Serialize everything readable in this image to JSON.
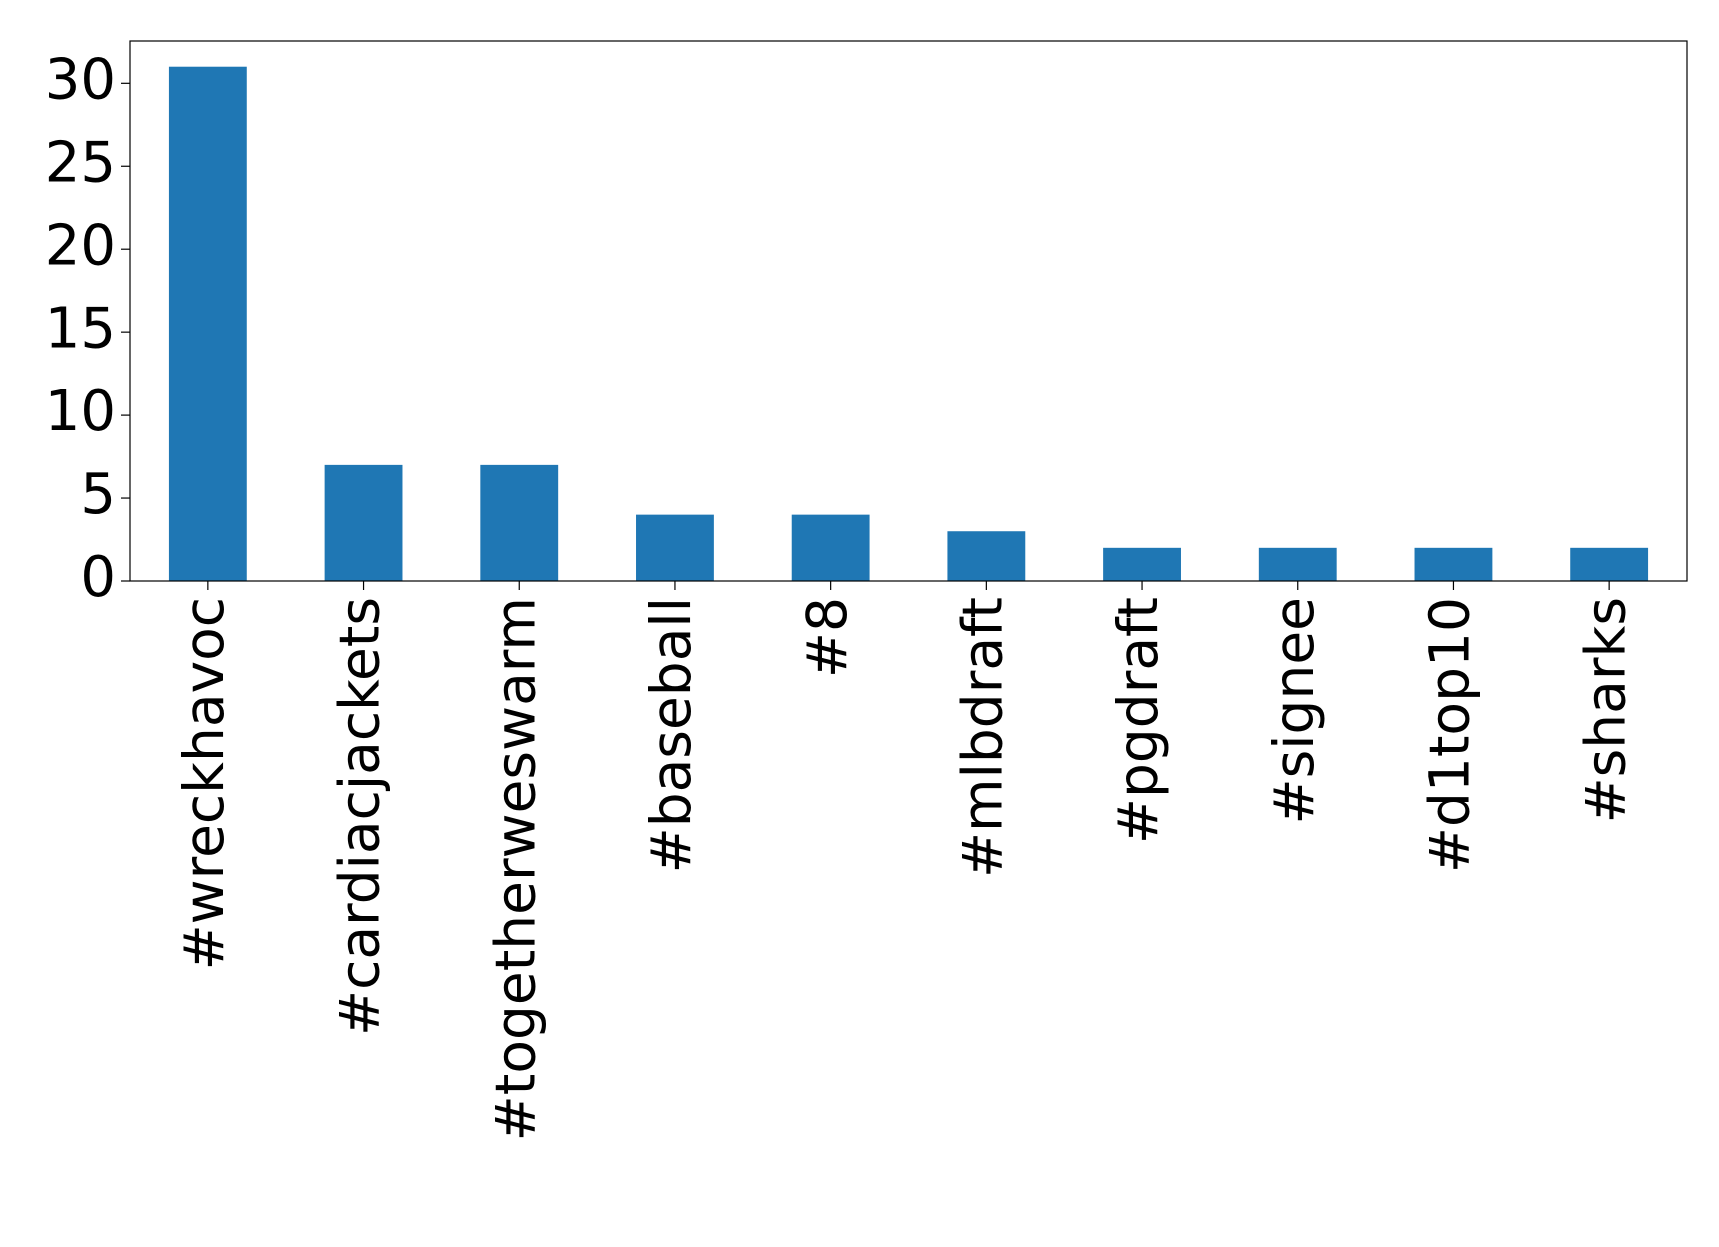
{
  "chart_data": {
    "type": "bar",
    "categories": [
      "#wreckhavoc",
      "#cardiacjackets",
      "#togetherweswarm",
      "#baseball",
      "#8",
      "#mlbdraft",
      "#pgdraft",
      "#signee",
      "#d1top10",
      "#sharks"
    ],
    "values": [
      31,
      7,
      7,
      4,
      4,
      3,
      2,
      2,
      2,
      2
    ],
    "color": "#1f77b4",
    "ylim": [
      0,
      32.55
    ],
    "yticks": [
      0,
      5,
      10,
      15,
      20,
      25,
      30
    ],
    "grid": false
  }
}
